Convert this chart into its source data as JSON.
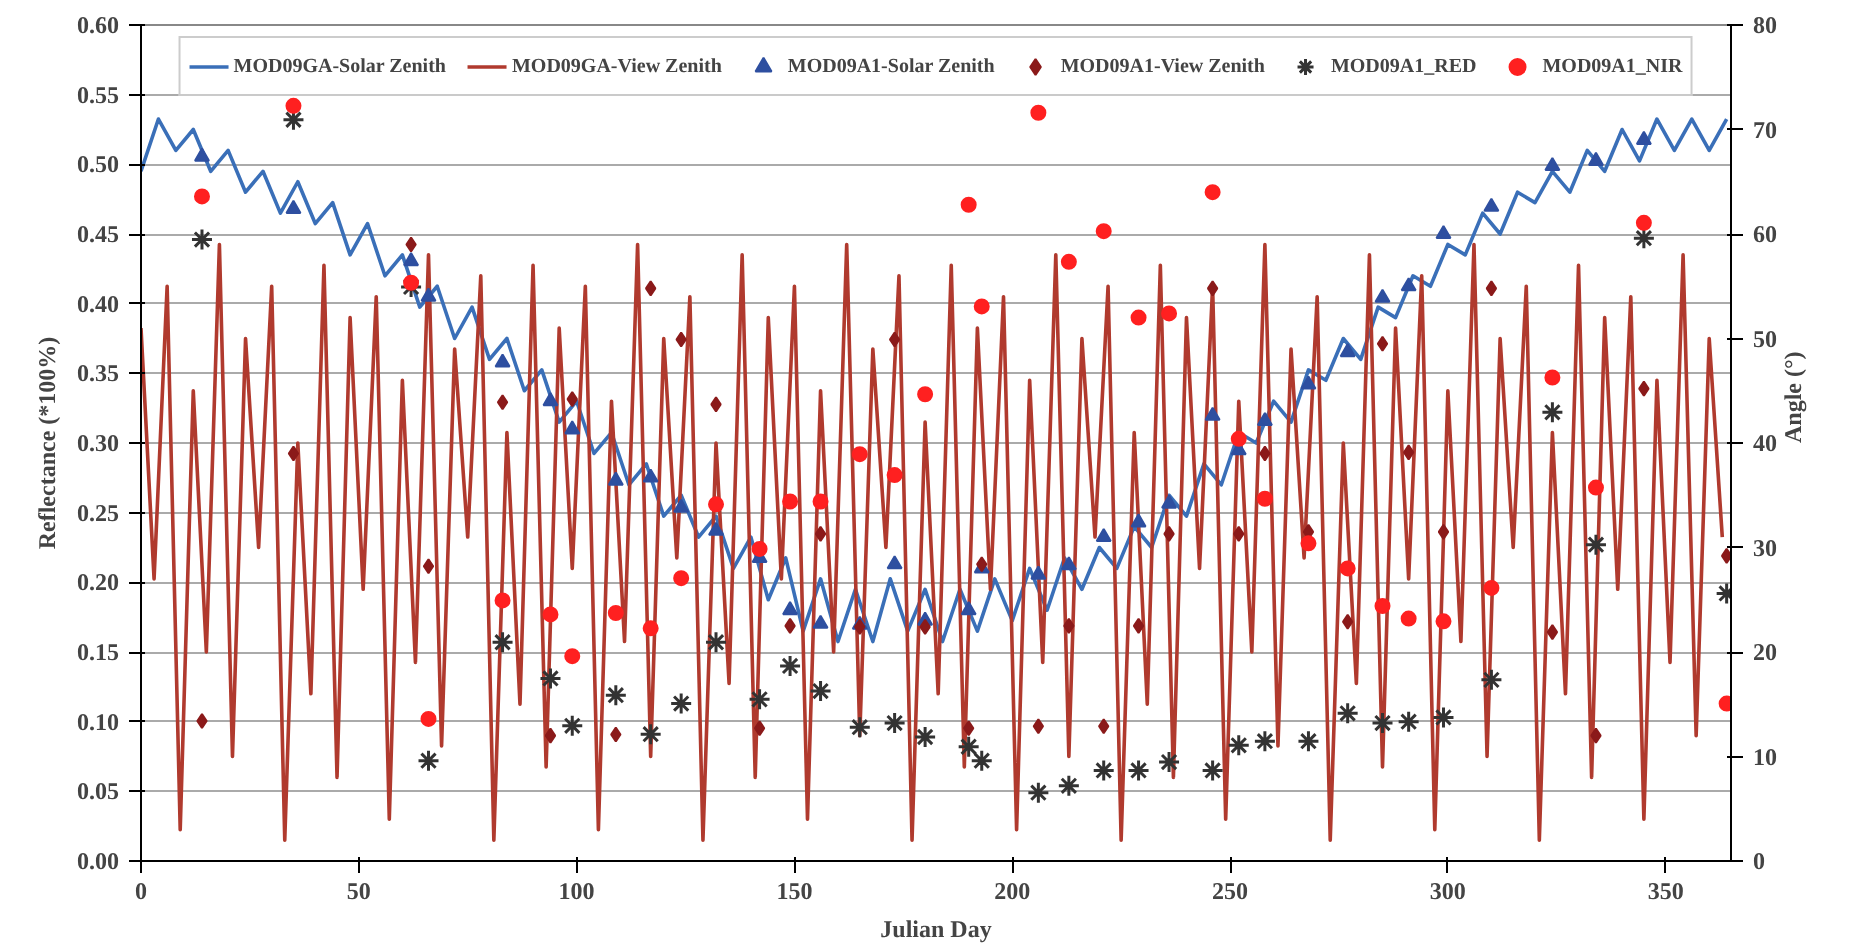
{
  "chart_data": {
    "type": "line",
    "xlabel": "Julian Day",
    "ylabel": "Reflectance (*100%)",
    "y2label": "Angle (°)",
    "xlim": [
      0,
      365
    ],
    "xticks": [
      0,
      50,
      100,
      150,
      200,
      250,
      300,
      350
    ],
    "ylim": [
      0,
      0.6
    ],
    "yticks": [
      {
        "value": 0,
        "label": "0.00"
      },
      {
        "value": 0.05,
        "label": "0.05"
      },
      {
        "value": 0.1,
        "label": "0.10"
      },
      {
        "value": 0.15,
        "label": "0.15"
      },
      {
        "value": 0.2,
        "label": "0.20"
      },
      {
        "value": 0.25,
        "label": "0.25"
      },
      {
        "value": 0.3,
        "label": "0.30"
      },
      {
        "value": 0.35,
        "label": "0.35"
      },
      {
        "value": 0.4,
        "label": "0.40"
      },
      {
        "value": 0.45,
        "label": "0.45"
      },
      {
        "value": 0.5,
        "label": "0.50"
      },
      {
        "value": 0.55,
        "label": "0.55"
      },
      {
        "value": 0.6,
        "label": "0.60"
      }
    ],
    "y2lim": [
      0,
      80
    ],
    "y2ticks": [
      0,
      10,
      20,
      30,
      40,
      50,
      60,
      70,
      80
    ],
    "grid": "y",
    "legend": "top",
    "series": [
      {
        "name": "MOD09GA-Solar Zenith",
        "axis": "y2",
        "color": "#3a6fb8",
        "marker": "none",
        "line_style": "solid",
        "x": [
          0,
          4,
          8,
          12,
          16,
          20,
          24,
          28,
          32,
          36,
          40,
          44,
          48,
          52,
          56,
          60,
          64,
          68,
          72,
          76,
          80,
          84,
          88,
          92,
          96,
          100,
          104,
          108,
          112,
          116,
          120,
          124,
          128,
          132,
          136,
          140,
          144,
          148,
          152,
          156,
          160,
          164,
          168,
          172,
          176,
          180,
          184,
          188,
          192,
          196,
          200,
          204,
          208,
          212,
          216,
          220,
          224,
          228,
          232,
          236,
          240,
          244,
          248,
          252,
          256,
          260,
          264,
          268,
          272,
          276,
          280,
          284,
          288,
          292,
          296,
          300,
          304,
          308,
          312,
          316,
          320,
          324,
          328,
          332,
          336,
          340,
          344,
          348,
          352,
          356,
          360,
          364
        ],
        "values": [
          66,
          71,
          68,
          70,
          66,
          68,
          64,
          66,
          62,
          65,
          61,
          63,
          58,
          61,
          56,
          58,
          53,
          55,
          50,
          53,
          48,
          50,
          45,
          47,
          42,
          44,
          39,
          41,
          36,
          38,
          33,
          35,
          31,
          33,
          28,
          31,
          25,
          29,
          22,
          27,
          21,
          26,
          21,
          27,
          22,
          26,
          21,
          26,
          22,
          27,
          23,
          28,
          24,
          29,
          26,
          30,
          28,
          32,
          30,
          35,
          33,
          38,
          36,
          41,
          40,
          44,
          42,
          47,
          46,
          50,
          48,
          53,
          52,
          56,
          55,
          59,
          58,
          62,
          60,
          64,
          63,
          66,
          64,
          68,
          66,
          70,
          67,
          71,
          68,
          71,
          68,
          71
        ]
      },
      {
        "name": "MOD09GA-View Zenith",
        "axis": "y2",
        "color": "#b03a2e",
        "marker": "none",
        "line_style": "solid",
        "x": [
          0,
          3,
          6,
          9,
          12,
          15,
          18,
          21,
          24,
          27,
          30,
          33,
          36,
          39,
          42,
          45,
          48,
          51,
          54,
          57,
          60,
          63,
          66,
          69,
          72,
          75,
          78,
          81,
          84,
          87,
          90,
          93,
          96,
          99,
          102,
          105,
          108,
          111,
          114,
          117,
          120,
          123,
          126,
          129,
          132,
          135,
          138,
          141,
          144,
          147,
          150,
          153,
          156,
          159,
          162,
          165,
          168,
          171,
          174,
          177,
          180,
          183,
          186,
          189,
          192,
          195,
          198,
          201,
          204,
          207,
          210,
          213,
          216,
          219,
          222,
          225,
          228,
          231,
          234,
          237,
          240,
          243,
          246,
          249,
          252,
          255,
          258,
          261,
          264,
          267,
          270,
          273,
          276,
          279,
          282,
          285,
          288,
          291,
          294,
          297,
          300,
          303,
          306,
          309,
          312,
          315,
          318,
          321,
          324,
          327,
          330,
          333,
          336,
          339,
          342,
          345,
          348,
          351,
          354,
          357,
          360,
          363
        ],
        "values": [
          51,
          27,
          55,
          3,
          45,
          20,
          59,
          10,
          50,
          30,
          55,
          2,
          40,
          16,
          57,
          8,
          52,
          26,
          54,
          4,
          46,
          19,
          58,
          11,
          49,
          31,
          56,
          2,
          41,
          15,
          57,
          9,
          51,
          28,
          55,
          3,
          44,
          21,
          59,
          10,
          50,
          29,
          54,
          2,
          40,
          17,
          58,
          8,
          52,
          27,
          55,
          4,
          45,
          20,
          59,
          12,
          49,
          30,
          56,
          2,
          42,
          16,
          57,
          9,
          51,
          26,
          54,
          3,
          46,
          19,
          58,
          10,
          50,
          31,
          55,
          2,
          41,
          15,
          57,
          8,
          52,
          28,
          55,
          4,
          44,
          20,
          59,
          11,
          49,
          29,
          54,
          2,
          40,
          17,
          58,
          9,
          51,
          27,
          56,
          3,
          45,
          21,
          59,
          10,
          50,
          30,
          55,
          2,
          41,
          16,
          57,
          8,
          52,
          26,
          54,
          4,
          46,
          19,
          58,
          12,
          50,
          31
        ]
      },
      {
        "name": "MOD09A1-Solar Zenith",
        "type": "scatter",
        "axis": "y2",
        "color": "#2e4fa0",
        "marker": "triangle",
        "x": [
          14,
          35,
          62,
          66,
          83,
          94,
          99,
          109,
          117,
          124,
          132,
          142,
          149,
          156,
          165,
          173,
          180,
          190,
          193,
          206,
          213,
          221,
          229,
          236,
          246,
          252,
          258,
          268,
          277,
          285,
          291,
          299,
          310,
          324,
          334,
          345
        ],
        "values": [
          67.4,
          62.4,
          57.4,
          54,
          47.7,
          44,
          41.3,
          36.4,
          36.7,
          33.8,
          31.6,
          29,
          24,
          22.7,
          22.6,
          28.4,
          23,
          24,
          28,
          27.4,
          28.3,
          31,
          32.4,
          34.2,
          42.6,
          39.3,
          42.1,
          45.6,
          48.7,
          53.9,
          55,
          60,
          62.6,
          66.5,
          67,
          69
        ]
      },
      {
        "name": "MOD09A1-View Zenith",
        "type": "scatter",
        "axis": "y2",
        "color": "#8b1a1a",
        "marker": "diamond",
        "x": [
          14,
          35,
          62,
          66,
          83,
          94,
          99,
          109,
          117,
          124,
          132,
          142,
          149,
          156,
          165,
          173,
          180,
          190,
          193,
          206,
          213,
          221,
          229,
          236,
          246,
          252,
          258,
          268,
          277,
          285,
          291,
          299,
          310,
          324,
          334,
          345,
          364
        ],
        "values": [
          13.4,
          39,
          59,
          28.2,
          43.9,
          12,
          44.2,
          12.1,
          54.8,
          49.9,
          43.7,
          12.7,
          22.5,
          31.3,
          22.4,
          49.9,
          22.4,
          12.7,
          28.4,
          12.9,
          22.5,
          12.9,
          22.5,
          31.3,
          54.8,
          31.3,
          39,
          31.5,
          22.9,
          49.5,
          39.1,
          31.5,
          54.8,
          21.9,
          12,
          45.2,
          29.2
        ]
      },
      {
        "name": "MOD09A1_RED",
        "type": "scatter",
        "color": "#333333",
        "marker": "cross",
        "x": [
          14,
          35,
          62,
          66,
          83,
          94,
          99,
          109,
          117,
          124,
          132,
          142,
          149,
          156,
          165,
          173,
          180,
          190,
          193,
          206,
          213,
          221,
          229,
          236,
          246,
          252,
          258,
          268,
          277,
          285,
          291,
          299,
          310,
          324,
          334,
          345,
          364
        ],
        "values": [
          0.446,
          0.532,
          0.412,
          0.072,
          0.157,
          0.131,
          0.097,
          0.119,
          0.091,
          0.113,
          0.157,
          0.116,
          0.14,
          0.122,
          0.096,
          0.099,
          0.089,
          0.082,
          0.072,
          0.049,
          0.054,
          0.065,
          0.065,
          0.071,
          0.065,
          0.083,
          0.086,
          0.086,
          0.106,
          0.099,
          0.1,
          0.103,
          0.13,
          0.322,
          0.227,
          0.447,
          0.192
        ]
      },
      {
        "name": "MOD09A1_NIR",
        "type": "scatter",
        "color": "#ff2020",
        "marker": "circle",
        "x": [
          14,
          35,
          62,
          66,
          83,
          94,
          99,
          109,
          117,
          124,
          132,
          142,
          149,
          156,
          165,
          173,
          180,
          190,
          193,
          206,
          213,
          221,
          229,
          236,
          246,
          252,
          258,
          268,
          277,
          285,
          291,
          299,
          310,
          324,
          334,
          345,
          364
        ],
        "values": [
          0.477,
          0.542,
          0.415,
          0.102,
          0.187,
          0.177,
          0.147,
          0.178,
          0.167,
          0.203,
          0.256,
          0.224,
          0.258,
          0.258,
          0.292,
          0.277,
          0.335,
          0.471,
          0.398,
          0.537,
          0.43,
          0.452,
          0.39,
          0.393,
          0.48,
          0.303,
          0.26,
          0.228,
          0.21,
          0.183,
          0.174,
          0.172,
          0.196,
          0.347,
          0.268,
          0.458,
          0.113
        ]
      }
    ]
  }
}
